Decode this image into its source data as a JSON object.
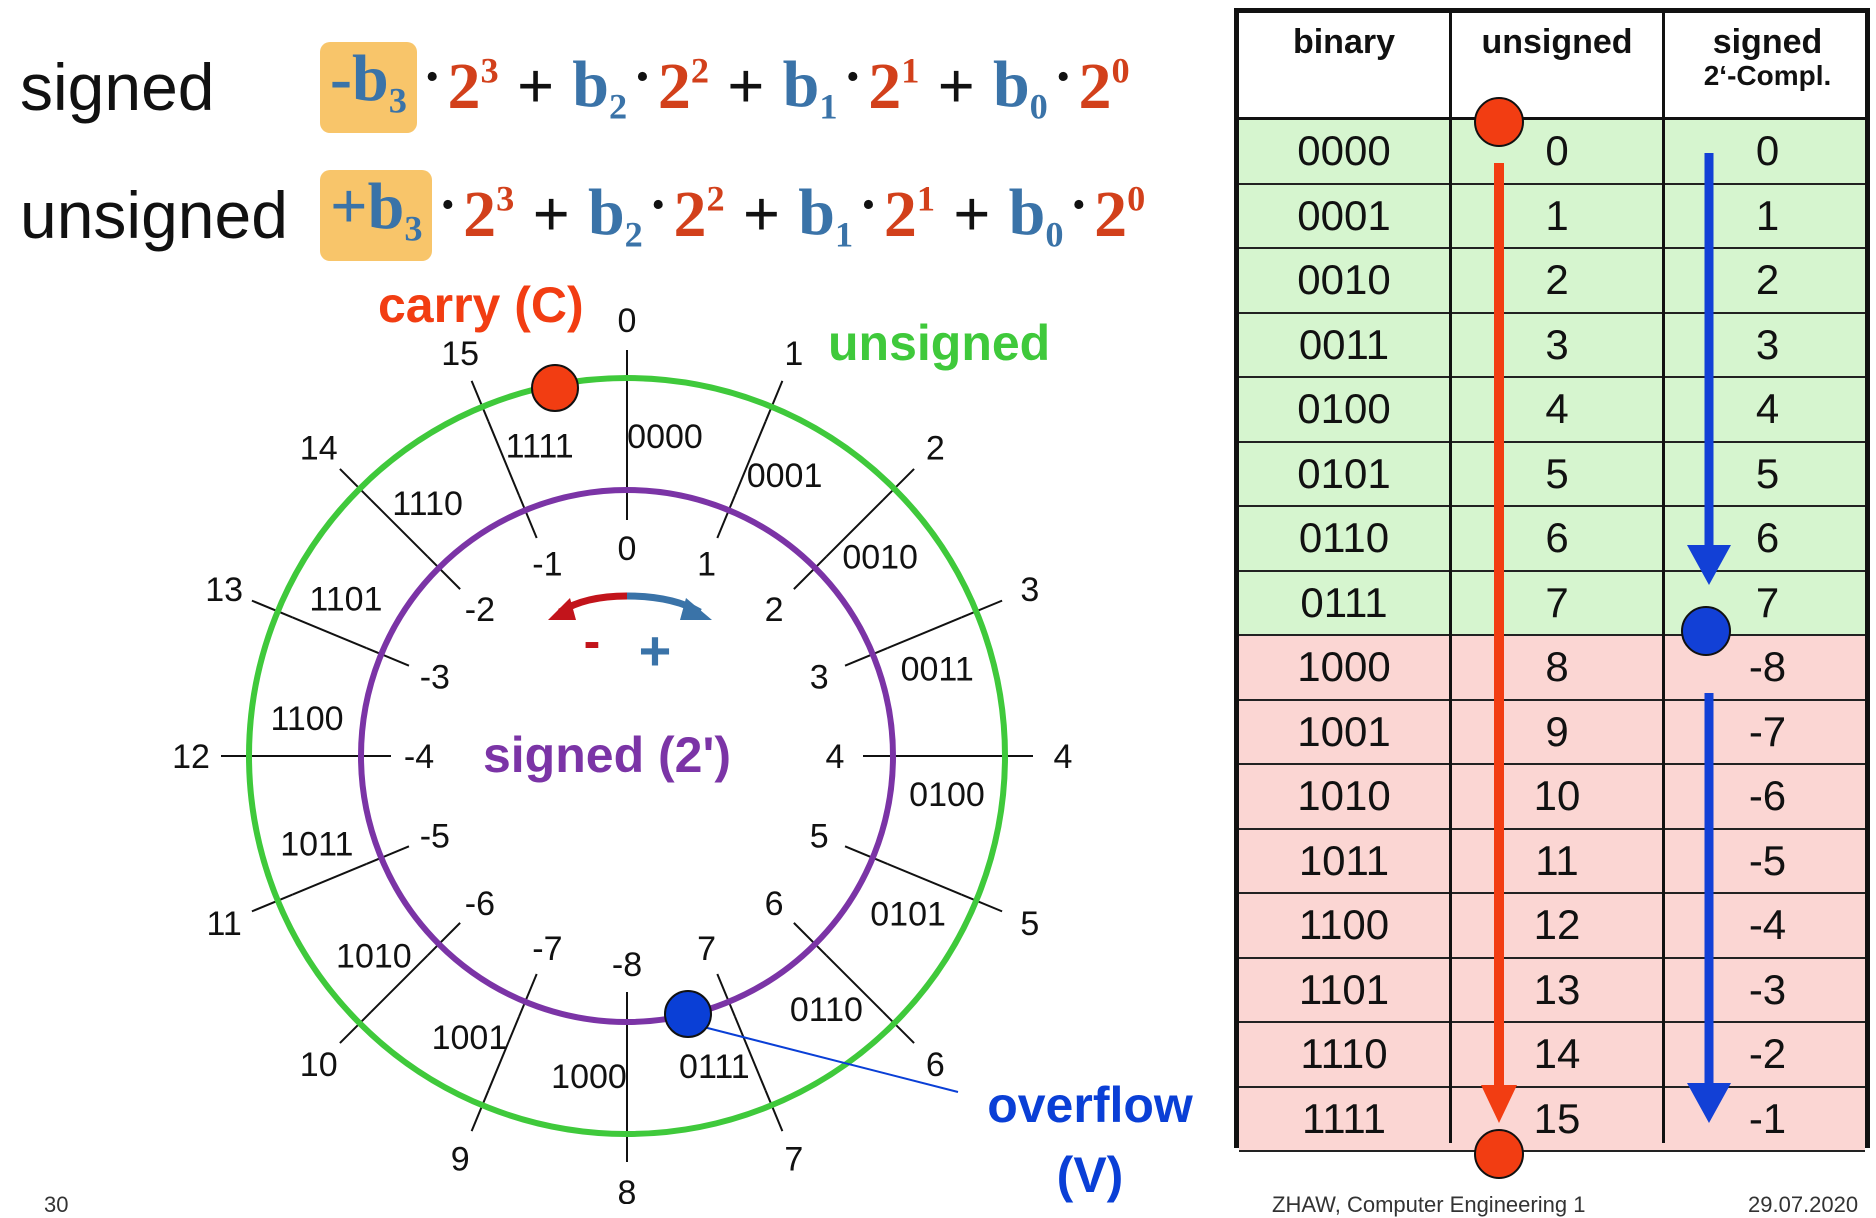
{
  "formulas": [
    {
      "label": "signed",
      "lead": "-b",
      "lead_sub": "3",
      "terms": [
        {
          "coef": "",
          "coef_sub": "",
          "base": "2",
          "exp": "3"
        },
        {
          "coef": "b",
          "coef_sub": "2",
          "base": "2",
          "exp": "2"
        },
        {
          "coef": "b",
          "coef_sub": "1",
          "base": "2",
          "exp": "1"
        },
        {
          "coef": "b",
          "coef_sub": "0",
          "base": "2",
          "exp": "0"
        }
      ]
    },
    {
      "label": "unsigned",
      "lead": "+b",
      "lead_sub": "3",
      "terms": [
        {
          "coef": "",
          "coef_sub": "",
          "base": "2",
          "exp": "3"
        },
        {
          "coef": "b",
          "coef_sub": "2",
          "base": "2",
          "exp": "2"
        },
        {
          "coef": "b",
          "coef_sub": "1",
          "base": "2",
          "exp": "1"
        },
        {
          "coef": "b",
          "coef_sub": "0",
          "base": "2",
          "exp": "0"
        }
      ]
    }
  ],
  "operators": {
    "plus": "+",
    "dot": "·"
  },
  "wheel": {
    "carry_label": "carry (C)",
    "unsigned_label": "unsigned",
    "signed_label": "signed (2')",
    "overflow_label": "overflow",
    "overflow_sub": "(V)",
    "minus_sign": "-",
    "plus_sign": "+",
    "unsigned_values": [
      "0",
      "1",
      "2",
      "3",
      "4",
      "5",
      "6",
      "7",
      "8",
      "9",
      "10",
      "11",
      "12",
      "13",
      "14",
      "15"
    ],
    "binary_values": [
      "0000",
      "0001",
      "0010",
      "0011",
      "0100",
      "0101",
      "0110",
      "0111",
      "1000",
      "1001",
      "1010",
      "1011",
      "1100",
      "1101",
      "1110",
      "1111"
    ],
    "signed_values": [
      "0",
      "1",
      "2",
      "3",
      "4",
      "5",
      "6",
      "7",
      "-8",
      "-7",
      "-6",
      "-5",
      "-4",
      "-3",
      "-2",
      "-1"
    ]
  },
  "table": {
    "headers": {
      "binary": "binary",
      "unsigned": "unsigned",
      "signed_line1": "signed",
      "signed_line2": "2‘-Compl."
    },
    "rows": [
      {
        "binary": "0000",
        "unsigned": "0",
        "signed": "0"
      },
      {
        "binary": "0001",
        "unsigned": "1",
        "signed": "1"
      },
      {
        "binary": "0010",
        "unsigned": "2",
        "signed": "2"
      },
      {
        "binary": "0011",
        "unsigned": "3",
        "signed": "3"
      },
      {
        "binary": "0100",
        "unsigned": "4",
        "signed": "4"
      },
      {
        "binary": "0101",
        "unsigned": "5",
        "signed": "5"
      },
      {
        "binary": "0110",
        "unsigned": "6",
        "signed": "6"
      },
      {
        "binary": "0111",
        "unsigned": "7",
        "signed": "7"
      },
      {
        "binary": "1000",
        "unsigned": "8",
        "signed": "-8"
      },
      {
        "binary": "1001",
        "unsigned": "9",
        "signed": "-7"
      },
      {
        "binary": "1010",
        "unsigned": "10",
        "signed": "-6"
      },
      {
        "binary": "1011",
        "unsigned": "11",
        "signed": "-5"
      },
      {
        "binary": "1100",
        "unsigned": "12",
        "signed": "-4"
      },
      {
        "binary": "1101",
        "unsigned": "13",
        "signed": "-3"
      },
      {
        "binary": "1110",
        "unsigned": "14",
        "signed": "-2"
      },
      {
        "binary": "1111",
        "unsigned": "15",
        "signed": "-1"
      }
    ]
  },
  "colors": {
    "unsigned_circle": "#3fc93b",
    "signed_circle": "#7b34a6",
    "carry": "#f23d12",
    "overflow": "#0a3fd6",
    "positive_rows": "#d6f5cf",
    "negative_rows": "#fbd6d3",
    "red_arrow": "#f23d12",
    "blue_arrow": "#1240d6",
    "highlight": "#f8c56a"
  },
  "footer": {
    "page": "30",
    "course": "ZHAW, Computer Engineering 1",
    "date": "29.07.2020"
  }
}
